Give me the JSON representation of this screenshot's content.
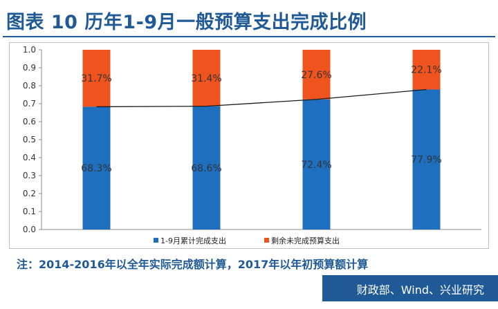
{
  "title": "图表 10  历年1-9月一般预算支出完成比例",
  "note": "注：2014-2016年以全年实际完成额计算，2017年以年初预算额计算",
  "source": "财政部、Wind、兴业研究",
  "colors": {
    "accent": "#1f5a96",
    "completed": "#1f6fbf",
    "remaining": "#f0541e",
    "line": "#1a1a1a"
  },
  "chart_data": {
    "type": "bar",
    "stacked": true,
    "categories": [
      "",
      "",
      "",
      ""
    ],
    "ylim": [
      0,
      1.0
    ],
    "yticks": [
      "0.0",
      "0.1",
      "0.2",
      "0.3",
      "0.4",
      "0.5",
      "0.6",
      "0.7",
      "0.8",
      "0.9",
      "1.0"
    ],
    "grid": false,
    "legend_position": "bottom",
    "series": [
      {
        "name": "1-9月累计完成支出",
        "values": [
          0.683,
          0.686,
          0.724,
          0.779
        ],
        "labels": [
          "68.3%",
          "68.6%",
          "72.4%",
          "77.9%"
        ]
      },
      {
        "name": "剩余未完成预算支出",
        "values": [
          0.317,
          0.314,
          0.276,
          0.221
        ],
        "labels": [
          "31.7%",
          "31.4%",
          "27.6%",
          "22.1%"
        ]
      }
    ],
    "line_series": {
      "values": [
        0.683,
        0.686,
        0.724,
        0.779
      ]
    }
  }
}
